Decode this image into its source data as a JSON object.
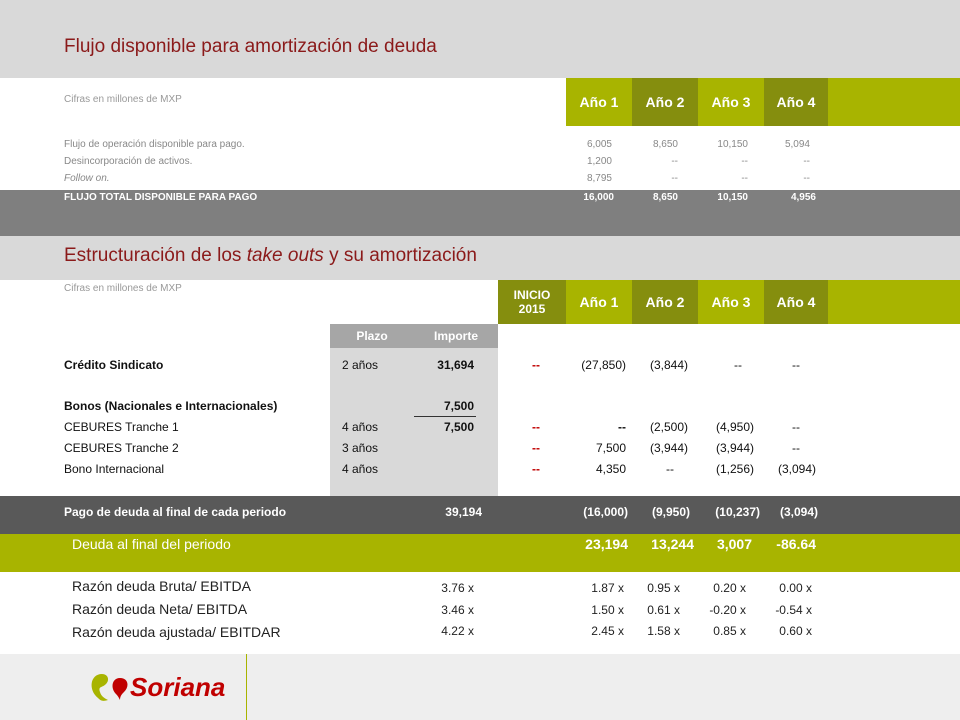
{
  "section1": {
    "title": "Flujo disponible para amortización de deuda",
    "units": "Cifras en millones de MXP",
    "years": [
      "Año 1",
      "Año 2",
      "Año 3",
      "Año 4"
    ],
    "rows": [
      {
        "label": "Flujo de operación disponible para pago.",
        "values": [
          "6,005",
          "8,650",
          "10,150",
          "5,094"
        ]
      },
      {
        "label": "Desincorporación de activos.",
        "values": [
          "1,200",
          "--",
          "--",
          "--"
        ]
      },
      {
        "label": "Follow on.",
        "values": [
          "8,795",
          "--",
          "--",
          "--"
        ]
      }
    ],
    "total": {
      "label": "FLUJO TOTAL DISPONIBLE PARA PAGO",
      "values": [
        "16,000",
        "8,650",
        "10,150",
        "4,956"
      ]
    }
  },
  "section2": {
    "title_pre": "Estructuración de los ",
    "title_em": "take outs",
    "title_post": " y su amortización",
    "units": "Cifras en millones de MXP",
    "inicio": "INICIO 2015",
    "years": [
      "Año 1",
      "Año 2",
      "Año 3",
      "Año 4"
    ],
    "plazo_header": "Plazo",
    "importe_header": "Importe",
    "credito": {
      "label": "Crédito Sindicato",
      "plazo": "2 años",
      "importe": "31,694",
      "inicio": "--",
      "values": [
        "(27,850)",
        "(3,844)",
        "--",
        "--"
      ]
    },
    "bonos": {
      "label": "Bonos (Nacionales e Internacionales)",
      "importe": "7,500"
    },
    "tranche1": {
      "label": "CEBURES Tranche 1",
      "plazo": "4 años",
      "importe": "7,500",
      "inicio": "--",
      "values": [
        "--",
        "(2,500)",
        "(4,950)",
        "--"
      ]
    },
    "tranche2": {
      "label": "CEBURES Tranche 2",
      "plazo": "3 años",
      "inicio": "--",
      "values": [
        "7,500",
        "(3,944)",
        "(3,944)",
        "--"
      ]
    },
    "bono_int": {
      "label": "Bono Internacional",
      "plazo": "4 años",
      "inicio": "--",
      "values": [
        "4,350",
        "--",
        "(1,256)",
        "(3,094)"
      ]
    },
    "pago": {
      "label": "Pago de deuda al final de cada periodo",
      "importe": "39,194",
      "values": [
        "(16,000)",
        "(9,950)",
        "(10,237)",
        "(3,094)"
      ]
    },
    "deuda_final": {
      "label": "Deuda al final del periodo",
      "values": [
        "23,194",
        "13,244",
        "3,007",
        "-86.64"
      ]
    },
    "ratios": [
      {
        "label": "Razón deuda Bruta/ EBITDA",
        "importe": "3.76 x",
        "values": [
          "1.87 x",
          "0.95 x",
          "0.20 x",
          "0.00 x"
        ]
      },
      {
        "label": "Razón deuda Neta/ EBITDA",
        "importe": "3.46 x",
        "values": [
          "1.50 x",
          "0.61 x",
          "-0.20 x",
          "-0.54 x"
        ]
      },
      {
        "label": "Razón deuda ajustada/ EBITDAR",
        "importe": "4.22 x",
        "values": [
          "2.45 x",
          "1.58 x",
          "0.85 x",
          "0.60 x"
        ]
      }
    ]
  },
  "footer": {
    "brand": "Soriana"
  },
  "colors": {
    "green": "#a8b400",
    "dark_green": "#858e0e",
    "title_red": "#8b1a1a",
    "gray_band": "#7f7f7f",
    "dark_band": "#595959"
  }
}
